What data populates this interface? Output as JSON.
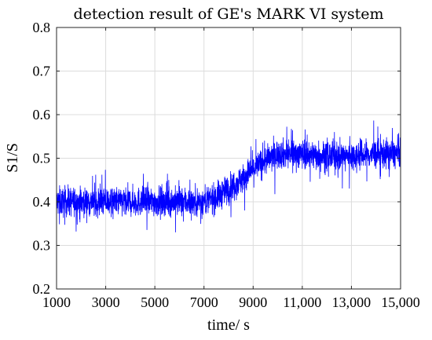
{
  "chart_data": {
    "type": "line",
    "title": "detection result of GE's MARK VI system",
    "xlabel": "time/ s",
    "ylabel": "S1/S",
    "xlim": [
      1000,
      15000
    ],
    "ylim": [
      0.2,
      0.8
    ],
    "x_ticks": [
      1000,
      3000,
      5000,
      7000,
      9000,
      11000,
      13000,
      15000
    ],
    "x_tick_labels": [
      "1000",
      "3000",
      "5000",
      "7000",
      "9000",
      "11,000",
      "13,000",
      "15,000"
    ],
    "y_ticks": [
      0.2,
      0.3,
      0.4,
      0.5,
      0.6,
      0.7,
      0.8
    ],
    "y_tick_labels": [
      "0.2",
      "0.3",
      "0.4",
      "0.5",
      "0.6",
      "0.7",
      "0.8"
    ],
    "grid": true,
    "legend": "none",
    "series": [
      {
        "color": "#0000ff",
        "trend_x": [
          1000,
          2000,
          3000,
          4000,
          5000,
          6000,
          7000,
          7500,
          8000,
          8500,
          9000,
          9500,
          10000,
          11000,
          12000,
          13000,
          14000,
          15000
        ],
        "trend_y": [
          0.4,
          0.4,
          0.4,
          0.4,
          0.4,
          0.4,
          0.4,
          0.41,
          0.43,
          0.45,
          0.475,
          0.495,
          0.51,
          0.51,
          0.505,
          0.505,
          0.51,
          0.51
        ],
        "noise_amplitude": 0.03,
        "peak_max": 0.62,
        "trough_min": 0.33
      }
    ]
  }
}
